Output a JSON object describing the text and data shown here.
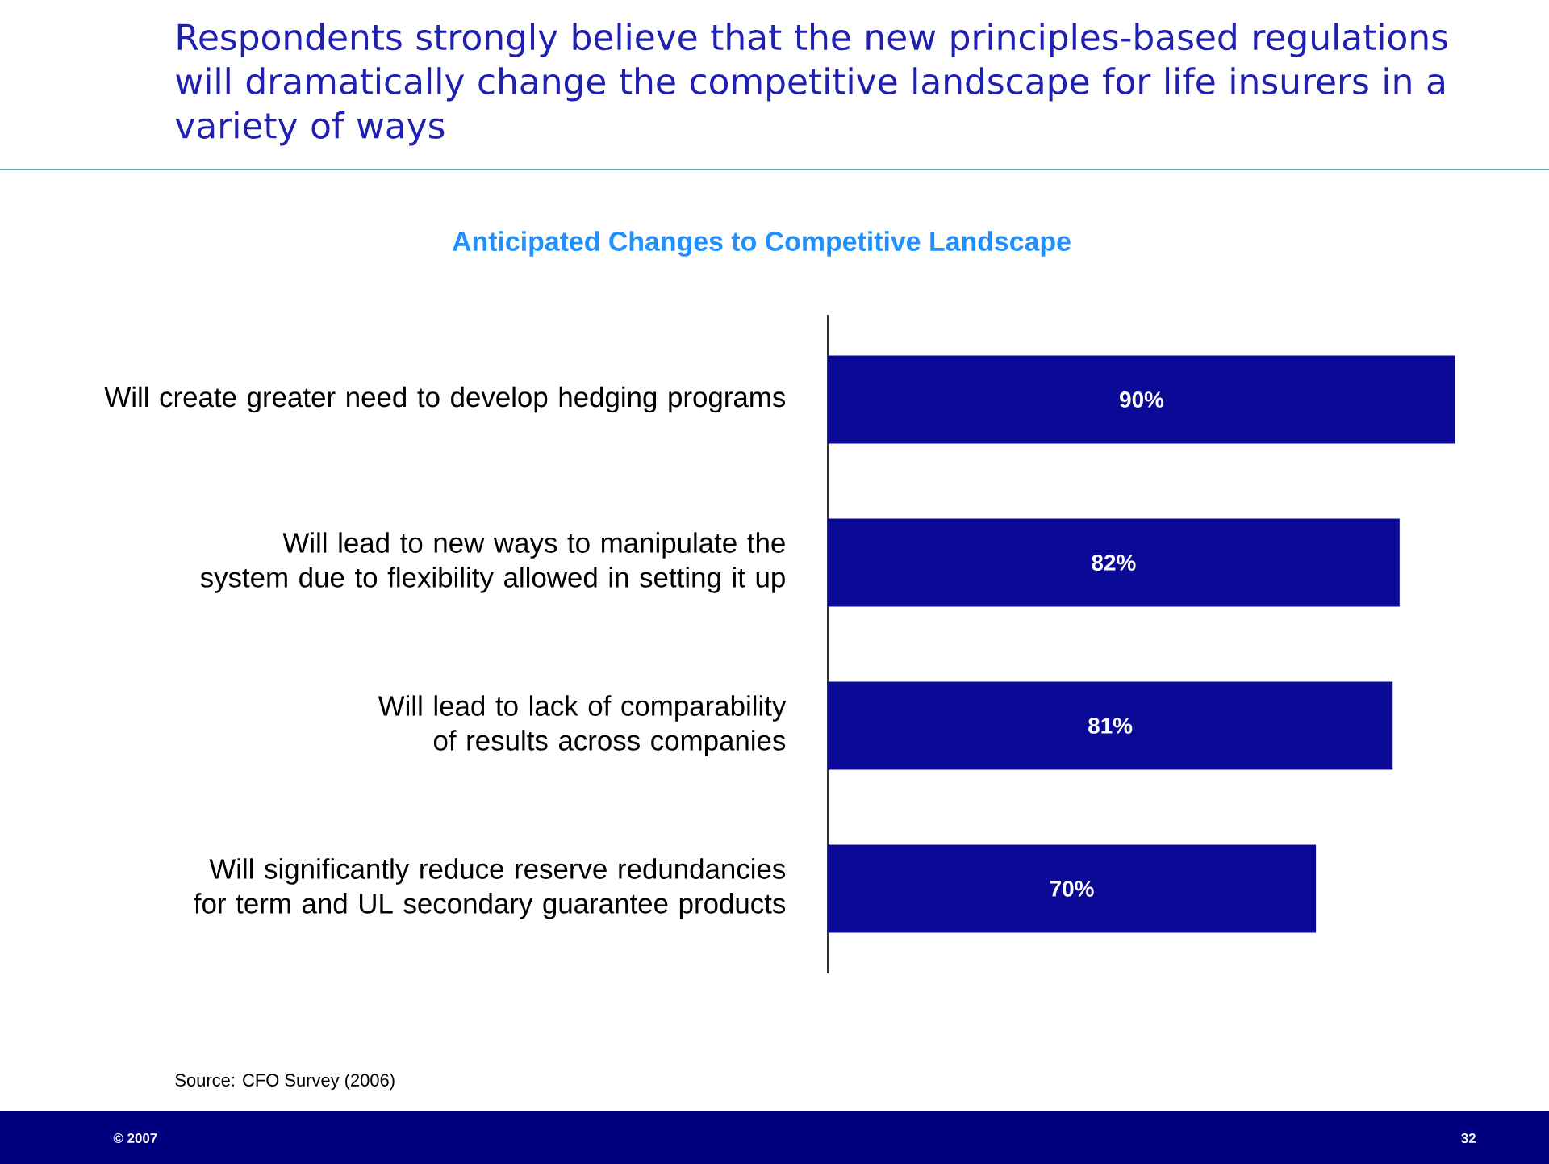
{
  "chart_data": {
    "type": "bar",
    "orientation": "horizontal",
    "title": "Respondents strongly believe that the new principles-based regulations will dramatically change the competitive landscape for life insurers in a variety of ways",
    "subtitle": "Anticipated Changes to Competitive Landscape",
    "categories": [
      "Will create greater need to develop hedging programs",
      "Will lead to new ways to manipulate the system due to flexibility allowed in setting it up",
      "Will lead to lack of comparability of results across companies",
      "Will significantly reduce reserve redundancies for term and UL secondary guarantee products"
    ],
    "values": [
      90,
      82,
      81,
      70
    ],
    "color": "#0a0a96",
    "value_labels": [
      "90%",
      "82%",
      "81%",
      "70%"
    ],
    "annotations": [
      "Source: CFO Survey (2006)",
      "© 2007",
      "32"
    ]
  }
}
